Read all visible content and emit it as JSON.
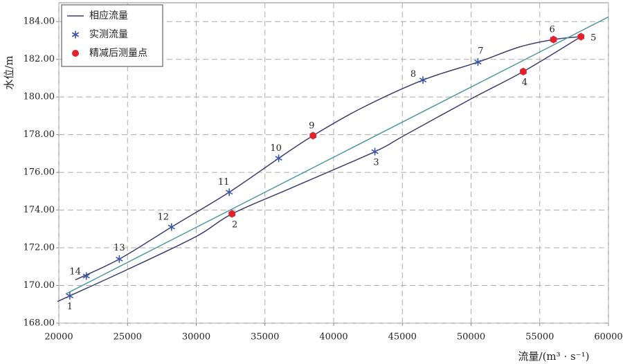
{
  "chart_data": {
    "type": "scatter",
    "xlabel": "流量/(m³ · s⁻¹)",
    "ylabel": "水位/m",
    "xlim": [
      20000,
      60000
    ],
    "xticks": [
      20000,
      25000,
      30000,
      35000,
      40000,
      45000,
      50000,
      55000,
      60000
    ],
    "ylim": [
      168,
      185
    ],
    "yticks": [
      {
        "value": 168,
        "label": "168.00"
      },
      {
        "value": 170,
        "label": "170.00"
      },
      {
        "value": 172,
        "label": "172.00"
      },
      {
        "value": 174,
        "label": "174.00"
      },
      {
        "value": 176,
        "label": "176.00"
      },
      {
        "value": 178,
        "label": "178.00"
      },
      {
        "value": 180,
        "label": "180.00"
      },
      {
        "value": 182,
        "label": "182.00"
      },
      {
        "value": 184,
        "label": "184.00"
      }
    ],
    "grid": true,
    "legend": "upper left",
    "series": [
      {
        "name": "相应流量",
        "type": "line",
        "color": "#3b3c6e",
        "x": [
          19900,
          20800,
          25000,
          30000,
          32600,
          37000,
          43000,
          45000,
          50000,
          53800,
          58000
        ],
        "values": [
          169.15,
          169.45,
          170.85,
          172.6,
          173.8,
          175.2,
          177.1,
          177.9,
          179.9,
          181.35,
          183.2
        ]
      },
      {
        "type": "line",
        "color": "#3b3c6e",
        "x": [
          21200,
          24400,
          28200,
          32400,
          36000,
          38500,
          42000,
          46500,
          50500,
          53500,
          56000,
          58000
        ],
        "values": [
          170.3,
          171.4,
          173.1,
          174.95,
          176.75,
          177.95,
          179.4,
          180.9,
          181.85,
          182.65,
          183.05,
          183.2
        ]
      },
      {
        "type": "line",
        "color": "#4a9a9c",
        "x": [
          20500,
          60000
        ],
        "values": [
          169.55,
          184.25
        ]
      },
      {
        "name": "实测流量",
        "type": "star",
        "color": "#3a55a8",
        "x": [
          20800,
          32600,
          43000,
          53800,
          58000,
          56000,
          50500,
          46500,
          38500,
          36000,
          32400,
          28200,
          24400,
          22000
        ],
        "values": [
          169.45,
          173.8,
          177.1,
          181.35,
          183.2,
          183.05,
          181.85,
          180.9,
          177.95,
          176.75,
          174.95,
          173.1,
          171.4,
          170.5
        ],
        "labels": [
          "1",
          "2",
          "3",
          "4",
          "5",
          "6",
          "7",
          "8",
          "9",
          "10",
          "11",
          "12",
          "13",
          "14"
        ]
      },
      {
        "name": "精减后测量点",
        "type": "dot",
        "color": "#e52029",
        "x": [
          32600,
          53800,
          58000,
          56000,
          38500
        ],
        "values": [
          173.8,
          181.35,
          183.2,
          183.05,
          177.95
        ]
      }
    ]
  }
}
